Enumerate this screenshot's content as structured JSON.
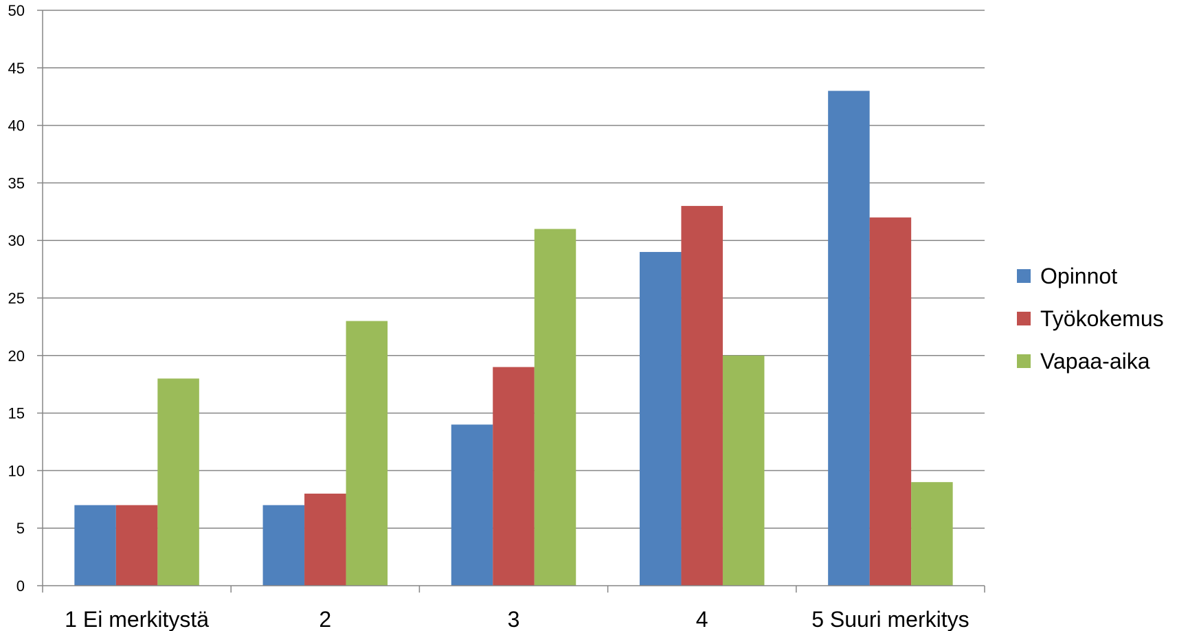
{
  "chart_data": {
    "type": "bar",
    "categories": [
      "1 Ei merkitystä",
      "2",
      "3",
      "4",
      "5 Suuri merkitys"
    ],
    "series": [
      {
        "name": "Opinnot",
        "color": "#4F81BD",
        "values": [
          7,
          7,
          14,
          29,
          43
        ]
      },
      {
        "name": "Työkokemus",
        "color": "#C0504D",
        "values": [
          7,
          8,
          19,
          33,
          32
        ]
      },
      {
        "name": "Vapaa-aika",
        "color": "#9BBB59",
        "values": [
          18,
          23,
          31,
          20,
          9
        ]
      }
    ],
    "ylim": [
      0,
      50
    ],
    "yticks": [
      0,
      5,
      10,
      15,
      20,
      25,
      30,
      35,
      40,
      45,
      50
    ],
    "grid": true,
    "legend": "right",
    "title": "",
    "xlabel": "",
    "ylabel": ""
  }
}
